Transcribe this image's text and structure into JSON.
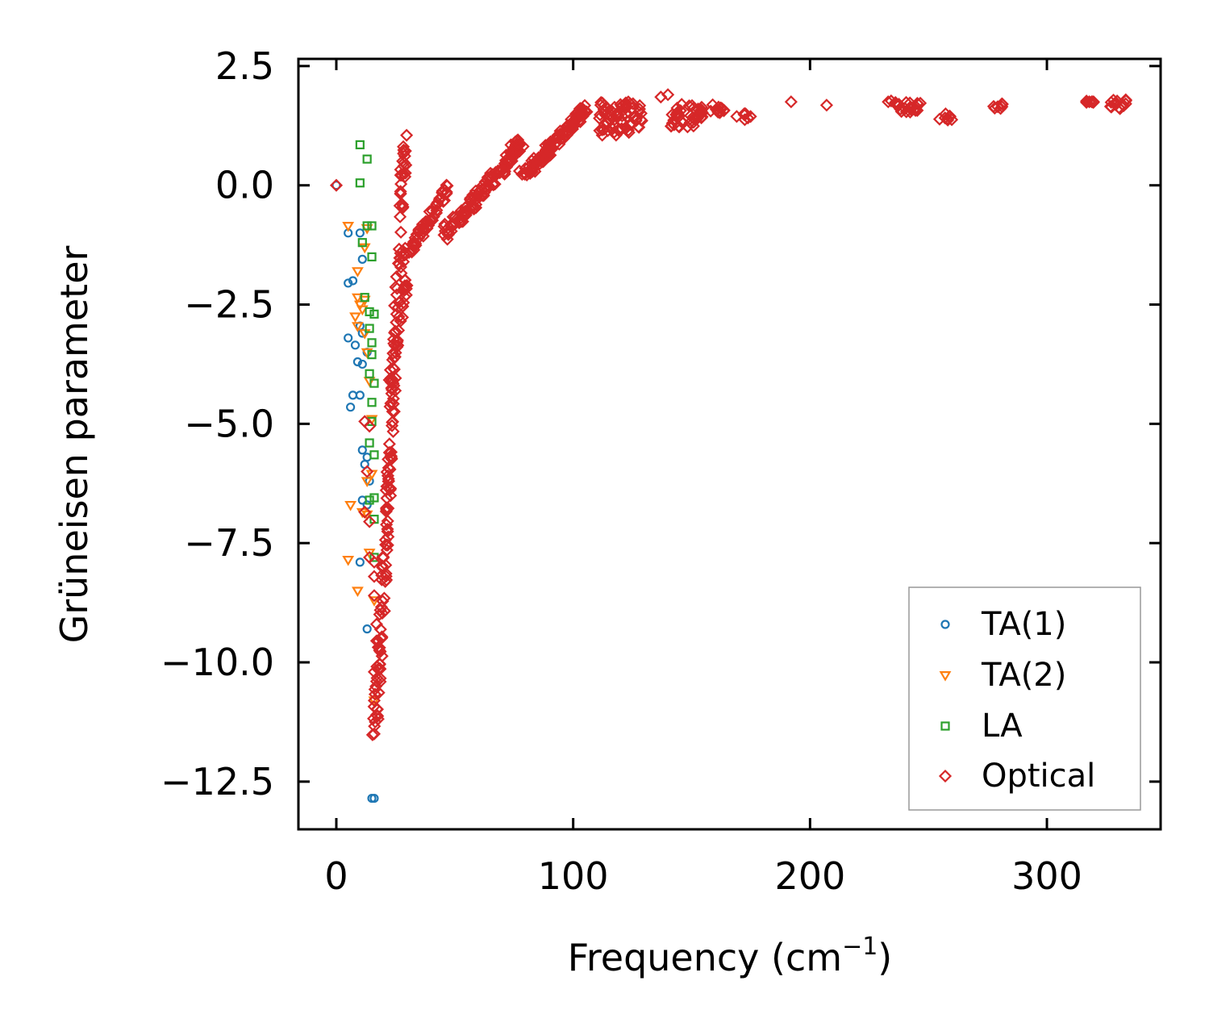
{
  "chart_data": {
    "type": "scatter",
    "title": "",
    "xlabel": "Frequency (cm",
    "xlabel_sup": "−1",
    "xlabel_close": ")",
    "ylabel": "Grüneisen parameter",
    "xlim": [
      -16,
      348
    ],
    "ylim": [
      -13.5,
      2.65
    ],
    "xticks": [
      0,
      100,
      200,
      300
    ],
    "xtick_labels": [
      "0",
      "100",
      "200",
      "300"
    ],
    "yticks": [
      2.5,
      0,
      -2.5,
      -5,
      -7.5,
      -10,
      -12.5
    ],
    "ytick_labels": [
      "2.5",
      "0.0",
      "−2.5",
      "−5.0",
      "−7.5",
      "−10.0",
      "−12.5"
    ],
    "legend_position": "lower-right",
    "grid": false,
    "series": [
      {
        "name": "TA(1)",
        "marker": "circle",
        "color": "#1f77b4",
        "points": [
          [
            0,
            0
          ],
          [
            5,
            -1
          ],
          [
            10,
            -1
          ],
          [
            5,
            -2.05
          ],
          [
            7,
            -2
          ],
          [
            11,
            -1.55
          ],
          [
            5,
            -3.2
          ],
          [
            8,
            -3.35
          ],
          [
            11,
            -3.1
          ],
          [
            10,
            -2.95
          ],
          [
            9,
            -3.7
          ],
          [
            11,
            -3.75
          ],
          [
            7,
            -4.4
          ],
          [
            10,
            -4.4
          ],
          [
            6,
            -4.65
          ],
          [
            13,
            -3.5
          ],
          [
            11,
            -5.55
          ],
          [
            13,
            -5.7
          ],
          [
            12,
            -5.85
          ],
          [
            14,
            -6.2
          ],
          [
            11,
            -6.6
          ],
          [
            13,
            -6.7
          ],
          [
            10,
            -7.9
          ],
          [
            13,
            -9.3
          ],
          [
            15,
            -12.85
          ],
          [
            16,
            -12.85
          ]
        ]
      },
      {
        "name": "TA(2)",
        "marker": "triangle-down",
        "color": "#ff7f0e",
        "points": [
          [
            5,
            -0.85
          ],
          [
            9,
            -1.8
          ],
          [
            12,
            -1.3
          ],
          [
            13,
            -0.9
          ],
          [
            9,
            -2.35
          ],
          [
            10,
            -2.5
          ],
          [
            12,
            -2.4
          ],
          [
            8,
            -2.75
          ],
          [
            9,
            -2.95
          ],
          [
            11,
            -2.6
          ],
          [
            12,
            -3.1
          ],
          [
            13,
            -3.5
          ],
          [
            14,
            -4.1
          ],
          [
            15,
            -4.9
          ],
          [
            13,
            -6.2
          ],
          [
            15,
            -6.05
          ],
          [
            6,
            -6.7
          ],
          [
            11,
            -6.85
          ],
          [
            13,
            -6.9
          ],
          [
            5,
            -7.85
          ],
          [
            14,
            -7.7
          ],
          [
            9,
            -8.5
          ],
          [
            16,
            -8.7
          ],
          [
            16,
            -10.8
          ]
        ]
      },
      {
        "name": "LA",
        "marker": "square",
        "color": "#2ca02c",
        "points": [
          [
            10,
            0.85
          ],
          [
            13,
            0.55
          ],
          [
            10,
            0.05
          ],
          [
            13,
            -0.85
          ],
          [
            15,
            -0.85
          ],
          [
            11,
            -1.2
          ],
          [
            15,
            -1.5
          ],
          [
            12,
            -2.35
          ],
          [
            14,
            -2.65
          ],
          [
            16,
            -2.7
          ],
          [
            14,
            -3
          ],
          [
            15,
            -3.3
          ],
          [
            15,
            -3.55
          ],
          [
            14,
            -3.95
          ],
          [
            16,
            -4.15
          ],
          [
            15,
            -4.55
          ],
          [
            15,
            -4.95
          ],
          [
            14,
            -5.4
          ],
          [
            16,
            -5.65
          ],
          [
            14,
            -6.6
          ],
          [
            16,
            -6.55
          ],
          [
            16,
            -7
          ],
          [
            16,
            -7.8
          ]
        ]
      },
      {
        "name": "Optical",
        "marker": "diamond",
        "color": "#d62728",
        "branches": [
          {
            "kind": "curve",
            "from": [
              16,
              -11.5
            ],
            "to": [
              29,
              1.2
            ],
            "count": 170,
            "spread": [
              2.2,
              0.3
            ]
          },
          {
            "kind": "curve",
            "from": [
              22,
              -4.2
            ],
            "to": [
              30,
              -1.9
            ],
            "count": 24,
            "spread": [
              1.2,
              0.25
            ]
          },
          {
            "kind": "curve",
            "from": [
              28,
              -1.5
            ],
            "to": [
              47,
              -0.05
            ],
            "count": 60,
            "spread": [
              1.5,
              0.25
            ]
          },
          {
            "kind": "curve",
            "from": [
              45,
              -1.0
            ],
            "to": [
              78,
              0.9
            ],
            "count": 120,
            "spread": [
              2.2,
              0.35
            ]
          },
          {
            "kind": "curve",
            "from": [
              78,
              0.2
            ],
            "to": [
              106,
              1.7
            ],
            "count": 110,
            "spread": [
              2.2,
              0.25
            ]
          },
          {
            "kind": "blob",
            "center": [
              120,
              1.4
            ],
            "size": [
              9,
              0.35
            ],
            "count": 70
          },
          {
            "kind": "blob",
            "center": [
              148,
              1.45
            ],
            "size": [
              7,
              0.25
            ],
            "count": 40
          },
          {
            "kind": "blob",
            "center": [
              162,
              1.6
            ],
            "size": [
              4,
              0.12
            ],
            "count": 14
          },
          {
            "kind": "blob",
            "center": [
              172,
              1.45
            ],
            "size": [
              3,
              0.08
            ],
            "count": 8
          },
          {
            "kind": "blob",
            "center": [
              240,
              1.65
            ],
            "size": [
              7,
              0.12
            ],
            "count": 22
          },
          {
            "kind": "blob",
            "center": [
              257,
              1.42
            ],
            "size": [
              3,
              0.08
            ],
            "count": 8
          },
          {
            "kind": "blob",
            "center": [
              280,
              1.65
            ],
            "size": [
              2.5,
              0.06
            ],
            "count": 7
          },
          {
            "kind": "blob",
            "center": [
              318,
              1.72
            ],
            "size": [
              3,
              0.05
            ],
            "count": 7
          },
          {
            "kind": "blob",
            "center": [
              330,
              1.68
            ],
            "size": [
              3.5,
              0.12
            ],
            "count": 14
          }
        ],
        "points": [
          [
            0,
            0
          ],
          [
            137,
            1.85
          ],
          [
            140,
            1.9
          ],
          [
            192,
            1.75
          ],
          [
            207,
            1.68
          ],
          [
            233,
            1.75
          ],
          [
            14,
            -7.8
          ],
          [
            16,
            -7.9
          ],
          [
            16,
            -8.2
          ],
          [
            16,
            -8.6
          ],
          [
            17,
            -9.2
          ],
          [
            17,
            -9.55
          ],
          [
            16,
            -10.2
          ],
          [
            17,
            -10.4
          ],
          [
            16,
            -10.8
          ],
          [
            17,
            -11.1
          ],
          [
            16,
            -11.5
          ],
          [
            12,
            -4.95
          ],
          [
            14,
            -5.05
          ],
          [
            13,
            -6.0
          ],
          [
            12,
            -6.85
          ],
          [
            14,
            -7.05
          ]
        ]
      }
    ]
  }
}
